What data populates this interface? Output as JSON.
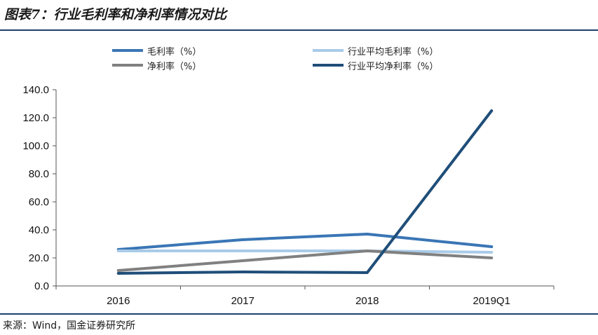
{
  "header": {
    "title": "图表7：行业毛利率和净利率情况对比"
  },
  "footer": {
    "source": "来源：Wind，国金证券研究所"
  },
  "chart_data": {
    "type": "line",
    "title": "行业毛利率和净利率情况对比",
    "categories": [
      "2016",
      "2017",
      "2018",
      "2019Q1"
    ],
    "ylim": [
      0,
      140
    ],
    "yticks": [
      "0.0",
      "20.0",
      "40.0",
      "60.0",
      "80.0",
      "100.0",
      "120.0",
      "140.0"
    ],
    "grid": false,
    "legend_position": "top",
    "series": [
      {
        "name": "毛利率（%）",
        "color": "#3a76b5",
        "values": [
          26.0,
          33.0,
          37.0,
          28.0
        ]
      },
      {
        "name": "行业平均毛利率（%）",
        "color": "#a9cbe8",
        "values": [
          25.0,
          25.0,
          25.0,
          24.0
        ]
      },
      {
        "name": "净利率（%）",
        "color": "#808080",
        "values": [
          11.0,
          18.0,
          25.0,
          20.0
        ]
      },
      {
        "name": "行业平均净利率（%）",
        "color": "#1f4e79",
        "values": [
          9.0,
          10.0,
          9.5,
          125.0
        ]
      }
    ]
  }
}
